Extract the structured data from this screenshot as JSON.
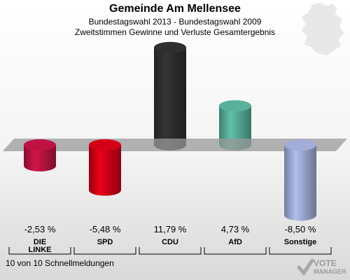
{
  "header": {
    "title": "Gemeinde Am Mellensee",
    "subtitle": "Bundestagswahl 2013 - Bundestagswahl 2009",
    "description": "Zweitstimmen Gewinne und Verluste Gesamtergebnis"
  },
  "footer": {
    "status": "10 von 10 Schnellmeldungen"
  },
  "logo": {
    "line1": "VOTE",
    "line2": "MANAGER"
  },
  "chart_data": {
    "type": "bar",
    "categories": [
      "DIE LINKE",
      "SPD",
      "CDU",
      "AfD",
      "Sonstige"
    ],
    "value_labels": [
      "-2,53 %",
      "-5,48 %",
      "11,79 %",
      "4,73 %",
      "-8,50 %"
    ],
    "values": [
      -2.53,
      -5.48,
      11.79,
      4.73,
      -8.5
    ],
    "colors": [
      "#b5123f",
      "#cc0015",
      "#2d2d2d",
      "#55a994",
      "#9aa6cf"
    ],
    "ylim": [
      -9,
      12
    ],
    "grid": false
  }
}
